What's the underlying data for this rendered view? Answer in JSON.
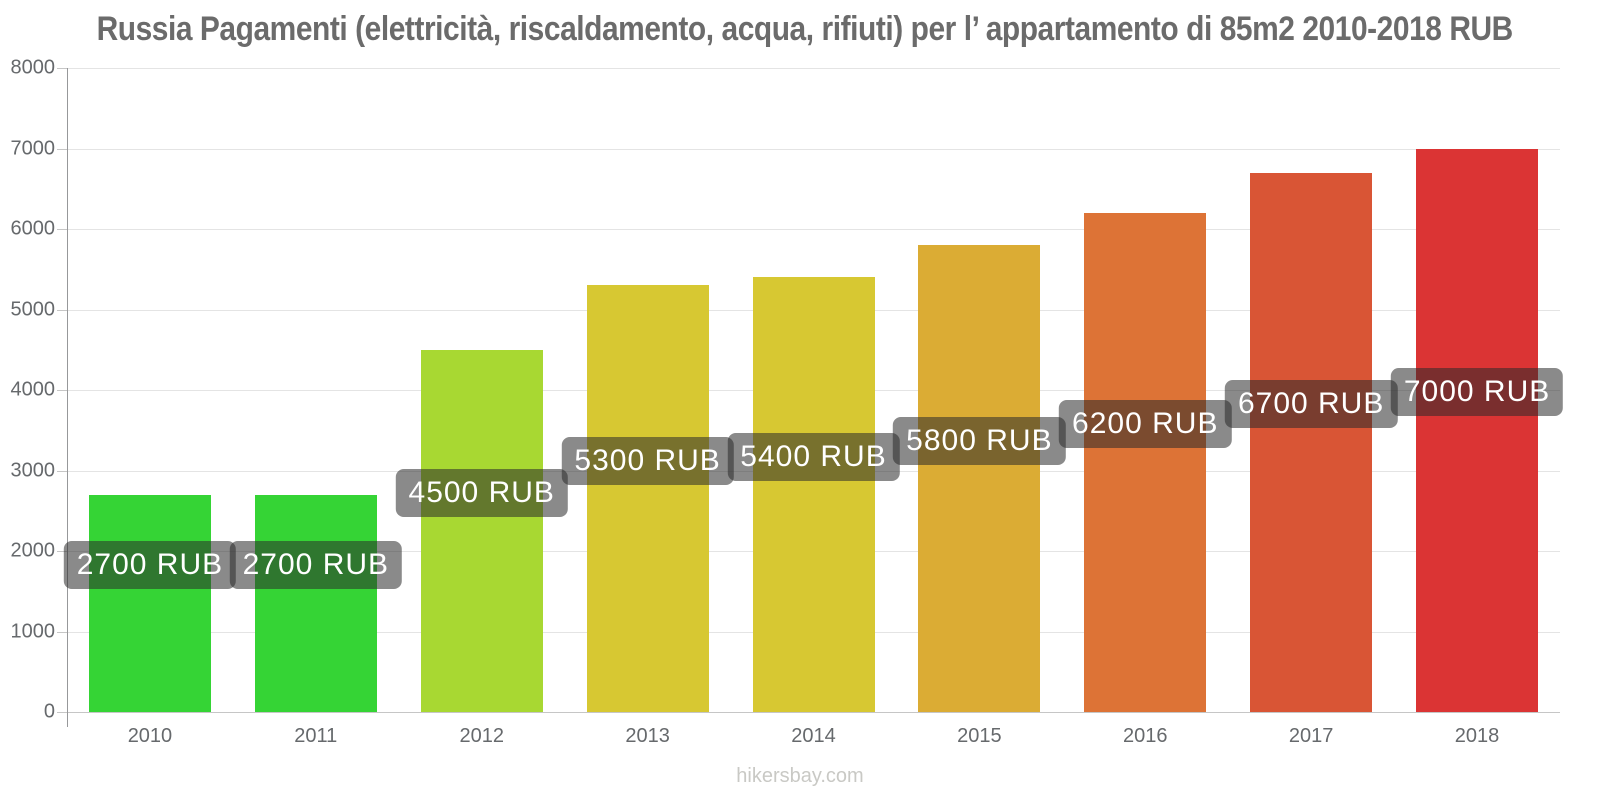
{
  "title": "Russia Pagamenti (elettricità, riscaldamento, acqua, rifiuti) per l’ appartamento di 85m2 2010-2018 RUB",
  "watermark": "hikersbay.com",
  "chart_data": {
    "type": "bar",
    "title": "Russia Pagamenti (elettricità, riscaldamento, acqua, rifiuti) per l’ appartamento di 85m2 2010-2018 RUB",
    "categories": [
      "2010",
      "2011",
      "2012",
      "2013",
      "2014",
      "2015",
      "2016",
      "2017",
      "2018"
    ],
    "values": [
      2700,
      2700,
      4500,
      5300,
      5400,
      5800,
      6200,
      6700,
      7000
    ],
    "bar_labels": [
      "2700 RUB",
      "2700 RUB",
      "4500 RUB",
      "5300 RUB",
      "5400 RUB",
      "5800 RUB",
      "6200 RUB",
      "6700 RUB",
      "7000 RUB"
    ],
    "bar_colors": [
      "#35d435",
      "#35d435",
      "#a8d832",
      "#d7c832",
      "#d7c832",
      "#dbac34",
      "#dd7336",
      "#d95535",
      "#db3434"
    ],
    "unit": "RUB",
    "xlabel": "",
    "ylabel": "",
    "ylim": [
      0,
      8000
    ],
    "yticks": [
      0,
      1000,
      2000,
      3000,
      4000,
      5000,
      6000,
      7000,
      8000
    ],
    "grid": true,
    "legend": false
  },
  "colors": {
    "title_text": "#6b6b6b",
    "axis_label_text": "#66696c",
    "axis_line": "#97989a",
    "gridline": "#e4e4e4",
    "baseline": "#c6c6c6",
    "bar_label_bg": "rgba(42,42,42,0.55)",
    "bar_label_text": "#ffffff",
    "watermark_text": "#c9c9c5"
  }
}
